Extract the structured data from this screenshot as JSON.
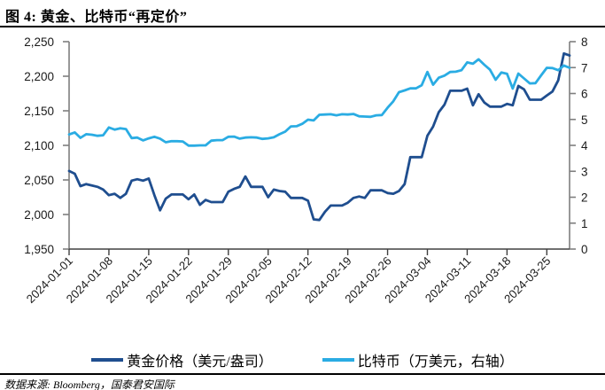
{
  "title": "图 4: 黄金、比特币“再定价”",
  "source": "数据来源: Bloomberg，国泰君安国际",
  "colors": {
    "gold_line": "#1F4E8F",
    "btc_line": "#2AACE3",
    "axis": "#7F7F7F",
    "tick_text": "#1A1A1A"
  },
  "chart_data": {
    "type": "line",
    "title": "黄金、比特币“再定价”",
    "x_tick_labels": [
      "2024-01-01",
      "2024-01-08",
      "2024-01-15",
      "2024-01-22",
      "2024-01-29",
      "2024-02-05",
      "2024-02-12",
      "2024-02-19",
      "2024-02-26",
      "2024-03-04",
      "2024-03-11",
      "2024-03-18",
      "2024-03-25"
    ],
    "x_dates": [
      "2024-01-01",
      "2024-01-02",
      "2024-01-03",
      "2024-01-04",
      "2024-01-05",
      "2024-01-06",
      "2024-01-07",
      "2024-01-08",
      "2024-01-09",
      "2024-01-10",
      "2024-01-11",
      "2024-01-12",
      "2024-01-13",
      "2024-01-14",
      "2024-01-15",
      "2024-01-16",
      "2024-01-17",
      "2024-01-18",
      "2024-01-19",
      "2024-01-20",
      "2024-01-21",
      "2024-01-22",
      "2024-01-23",
      "2024-01-24",
      "2024-01-25",
      "2024-01-26",
      "2024-01-27",
      "2024-01-28",
      "2024-01-29",
      "2024-01-30",
      "2024-01-31",
      "2024-02-01",
      "2024-02-02",
      "2024-02-03",
      "2024-02-04",
      "2024-02-05",
      "2024-02-06",
      "2024-02-07",
      "2024-02-08",
      "2024-02-09",
      "2024-02-10",
      "2024-02-11",
      "2024-02-12",
      "2024-02-13",
      "2024-02-14",
      "2024-02-15",
      "2024-02-16",
      "2024-02-17",
      "2024-02-18",
      "2024-02-19",
      "2024-02-20",
      "2024-02-21",
      "2024-02-22",
      "2024-02-23",
      "2024-02-24",
      "2024-02-25",
      "2024-02-26",
      "2024-02-27",
      "2024-02-28",
      "2024-02-29",
      "2024-03-01",
      "2024-03-02",
      "2024-03-03",
      "2024-03-04",
      "2024-03-05",
      "2024-03-06",
      "2024-03-07",
      "2024-03-08",
      "2024-03-09",
      "2024-03-10",
      "2024-03-11",
      "2024-03-12",
      "2024-03-13",
      "2024-03-14",
      "2024-03-15",
      "2024-03-16",
      "2024-03-17",
      "2024-03-18",
      "2024-03-19",
      "2024-03-20",
      "2024-03-21",
      "2024-03-22",
      "2024-03-23",
      "2024-03-24",
      "2024-03-25",
      "2024-03-26",
      "2024-03-27",
      "2024-03-28",
      "2024-03-29"
    ],
    "series": [
      {
        "name": "黄金价格（美元/盎司）",
        "axis": "left",
        "color": "#1F4E8F",
        "values": [
          2063,
          2059,
          2041,
          2044,
          2042,
          2040,
          2036,
          2028,
          2030,
          2024,
          2030,
          2049,
          2051,
          2049,
          2052,
          2028,
          2006,
          2023,
          2029,
          2029,
          2029,
          2022,
          2029,
          2014,
          2021,
          2018,
          2018,
          2018,
          2033,
          2037,
          2040,
          2055,
          2040,
          2040,
          2040,
          2025,
          2036,
          2034,
          2033,
          2024,
          2024,
          2024,
          2020,
          1993,
          1992,
          2004,
          2013,
          2013,
          2013,
          2017,
          2024,
          2026,
          2024,
          2035,
          2035,
          2035,
          2031,
          2030,
          2034,
          2044,
          2083,
          2083,
          2083,
          2114,
          2127,
          2148,
          2159,
          2179,
          2179,
          2179,
          2182,
          2158,
          2174,
          2162,
          2156,
          2156,
          2156,
          2160,
          2158,
          2186,
          2181,
          2166,
          2166,
          2166,
          2172,
          2178,
          2194,
          2233,
          2230
        ]
      },
      {
        "name": "比特币（万美元，右轴）",
        "axis": "right",
        "color": "#2AACE3",
        "values": [
          4.42,
          4.5,
          4.29,
          4.43,
          4.41,
          4.37,
          4.39,
          4.69,
          4.61,
          4.66,
          4.63,
          4.28,
          4.3,
          4.19,
          4.27,
          4.33,
          4.26,
          4.12,
          4.16,
          4.16,
          4.15,
          3.99,
          3.99,
          4.0,
          4.0,
          4.18,
          4.2,
          4.2,
          4.33,
          4.34,
          4.26,
          4.3,
          4.31,
          4.3,
          4.25,
          4.27,
          4.31,
          4.43,
          4.53,
          4.73,
          4.74,
          4.83,
          4.99,
          4.96,
          5.18,
          5.19,
          5.2,
          5.16,
          5.2,
          5.19,
          5.21,
          5.12,
          5.11,
          5.1,
          5.16,
          5.17,
          5.45,
          5.7,
          6.05,
          6.12,
          6.2,
          6.2,
          6.32,
          6.83,
          6.34,
          6.61,
          6.69,
          6.83,
          6.84,
          6.9,
          7.2,
          7.15,
          7.32,
          7.11,
          6.92,
          6.53,
          6.81,
          6.76,
          6.19,
          6.77,
          6.58,
          6.39,
          6.4,
          6.7,
          6.99,
          6.98,
          6.9,
          7.08,
          6.99
        ]
      }
    ],
    "y_left": {
      "label": "美元/盎司",
      "min": 1950,
      "max": 2250,
      "ticks": [
        2250,
        2200,
        2150,
        2100,
        2050,
        2000,
        1950
      ],
      "tick_labels": [
        "2,250",
        "2,200",
        "2,150",
        "2,100",
        "2,050",
        "2,000",
        "1,950"
      ]
    },
    "y_right": {
      "label": "万美元",
      "min": 0,
      "max": 8,
      "ticks": [
        8,
        7,
        6,
        5,
        4,
        3,
        2,
        1,
        0
      ],
      "tick_labels": [
        "8",
        "7",
        "6",
        "5",
        "4",
        "3",
        "2",
        "1",
        "0"
      ]
    },
    "grid": false,
    "legend_position": "bottom"
  }
}
